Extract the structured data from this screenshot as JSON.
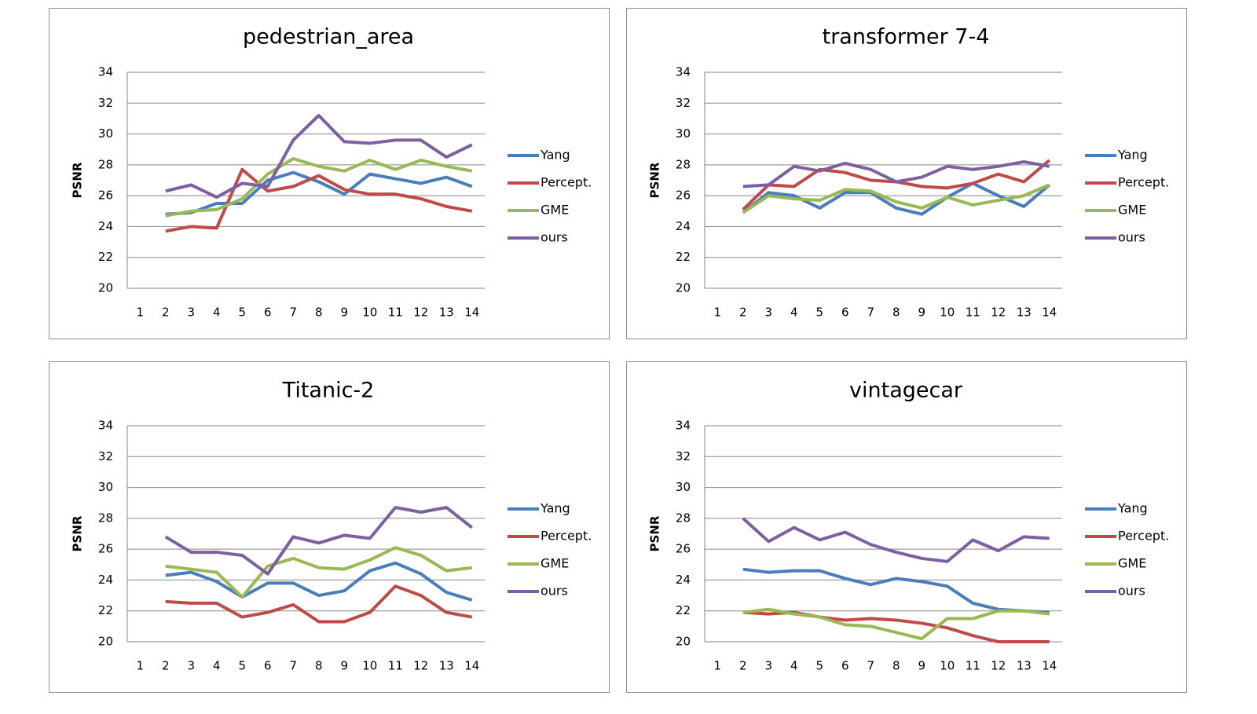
{
  "chart_data": [
    {
      "type": "line",
      "title": "pedestrian_area",
      "ylabel": "PSNR",
      "categories": [
        1,
        2,
        3,
        4,
        5,
        6,
        7,
        8,
        9,
        10,
        11,
        12,
        13,
        14
      ],
      "ylim": [
        20,
        34
      ],
      "yticks": [
        20,
        22,
        24,
        26,
        28,
        30,
        32,
        34
      ],
      "grid": true,
      "legend": "right",
      "series": [
        {
          "name": "Yang",
          "color": "#4a7ebb",
          "values": [
            null,
            24.8,
            24.9,
            25.5,
            25.5,
            27.0,
            27.5,
            26.9,
            26.1,
            27.4,
            27.1,
            26.8,
            27.2,
            26.6
          ]
        },
        {
          "name": "Percept.",
          "color": "#be4b48",
          "values": [
            null,
            23.7,
            24.0,
            23.9,
            27.7,
            26.3,
            26.6,
            27.3,
            26.4,
            26.1,
            26.1,
            25.8,
            25.3,
            25.0
          ]
        },
        {
          "name": "GME",
          "color": "#98b954",
          "values": [
            null,
            24.7,
            25.0,
            25.1,
            25.8,
            27.4,
            28.4,
            27.9,
            27.6,
            28.3,
            27.7,
            28.3,
            27.9,
            27.6
          ]
        },
        {
          "name": "ours",
          "color": "#7d60a0",
          "values": [
            null,
            26.3,
            26.7,
            25.9,
            26.8,
            26.6,
            29.6,
            31.2,
            29.5,
            29.4,
            29.6,
            29.6,
            28.5,
            29.3
          ]
        }
      ]
    },
    {
      "type": "line",
      "title": "transformer 7-4",
      "ylabel": "PSNR",
      "categories": [
        1,
        2,
        3,
        4,
        5,
        6,
        7,
        8,
        9,
        10,
        11,
        12,
        13,
        14
      ],
      "ylim": [
        20,
        34
      ],
      "yticks": [
        20,
        22,
        24,
        26,
        28,
        30,
        32,
        34
      ],
      "grid": true,
      "legend": "right",
      "series": [
        {
          "name": "Yang",
          "color": "#4a7ebb",
          "values": [
            null,
            24.9,
            26.2,
            26.0,
            25.2,
            26.2,
            26.2,
            25.2,
            24.8,
            25.9,
            26.8,
            26.0,
            25.3,
            26.7
          ]
        },
        {
          "name": "Percept.",
          "color": "#be4b48",
          "values": [
            null,
            25.1,
            26.7,
            26.6,
            27.7,
            27.5,
            27.0,
            26.9,
            26.6,
            26.5,
            26.8,
            27.4,
            26.9,
            28.3
          ]
        },
        {
          "name": "GME",
          "color": "#98b954",
          "values": [
            null,
            24.9,
            26.0,
            25.8,
            25.7,
            26.4,
            26.3,
            25.6,
            25.2,
            25.9,
            25.4,
            25.7,
            26.0,
            26.7
          ]
        },
        {
          "name": "ours",
          "color": "#7d60a0",
          "values": [
            null,
            26.6,
            26.7,
            27.9,
            27.6,
            28.1,
            27.7,
            26.9,
            27.2,
            27.9,
            27.7,
            27.9,
            28.2,
            27.9
          ]
        }
      ]
    },
    {
      "type": "line",
      "title": "Titanic-2",
      "ylabel": "PSNR",
      "categories": [
        1,
        2,
        3,
        4,
        5,
        6,
        7,
        8,
        9,
        10,
        11,
        12,
        13,
        14
      ],
      "ylim": [
        20,
        34
      ],
      "yticks": [
        20,
        22,
        24,
        26,
        28,
        30,
        32,
        34
      ],
      "grid": true,
      "legend": "right",
      "series": [
        {
          "name": "Yang",
          "color": "#4a7ebb",
          "values": [
            null,
            24.3,
            24.5,
            23.9,
            22.9,
            23.8,
            23.8,
            23.0,
            23.3,
            24.6,
            25.1,
            24.4,
            23.2,
            22.7
          ]
        },
        {
          "name": "Percept.",
          "color": "#be4b48",
          "values": [
            null,
            22.6,
            22.5,
            22.5,
            21.6,
            21.9,
            22.4,
            21.3,
            21.3,
            21.9,
            23.6,
            23.0,
            21.9,
            21.6
          ]
        },
        {
          "name": "GME",
          "color": "#98b954",
          "values": [
            null,
            24.9,
            24.7,
            24.5,
            22.9,
            24.9,
            25.4,
            24.8,
            24.7,
            25.3,
            26.1,
            25.6,
            24.6,
            24.8
          ]
        },
        {
          "name": "ours",
          "color": "#7d60a0",
          "values": [
            null,
            26.8,
            25.8,
            25.8,
            25.6,
            24.4,
            26.8,
            26.4,
            26.9,
            26.7,
            28.7,
            28.4,
            28.7,
            27.4
          ]
        }
      ]
    },
    {
      "type": "line",
      "title": "vintagecar",
      "ylabel": "PSNR",
      "categories": [
        1,
        2,
        3,
        4,
        5,
        6,
        7,
        8,
        9,
        10,
        11,
        12,
        13,
        14
      ],
      "ylim": [
        20,
        34
      ],
      "yticks": [
        20,
        22,
        24,
        26,
        28,
        30,
        32,
        34
      ],
      "grid": true,
      "legend": "right",
      "series": [
        {
          "name": "Yang",
          "color": "#4a7ebb",
          "values": [
            null,
            24.7,
            24.5,
            24.6,
            24.6,
            24.1,
            23.7,
            24.1,
            23.9,
            23.6,
            22.5,
            22.1,
            22.0,
            21.9
          ]
        },
        {
          "name": "Percept.",
          "color": "#be4b48",
          "values": [
            null,
            21.9,
            21.8,
            21.9,
            21.6,
            21.4,
            21.5,
            21.4,
            21.2,
            20.9,
            20.4,
            20.0,
            20.0,
            20.0
          ]
        },
        {
          "name": "GME",
          "color": "#98b954",
          "values": [
            null,
            21.9,
            22.1,
            21.8,
            21.6,
            21.1,
            21.0,
            20.6,
            20.2,
            21.5,
            21.5,
            22.0,
            22.0,
            21.8
          ]
        },
        {
          "name": "ours",
          "color": "#7d60a0",
          "values": [
            null,
            28.0,
            26.5,
            27.4,
            26.6,
            27.1,
            26.3,
            25.8,
            25.4,
            25.2,
            26.6,
            25.9,
            26.8,
            26.7
          ]
        }
      ]
    }
  ]
}
